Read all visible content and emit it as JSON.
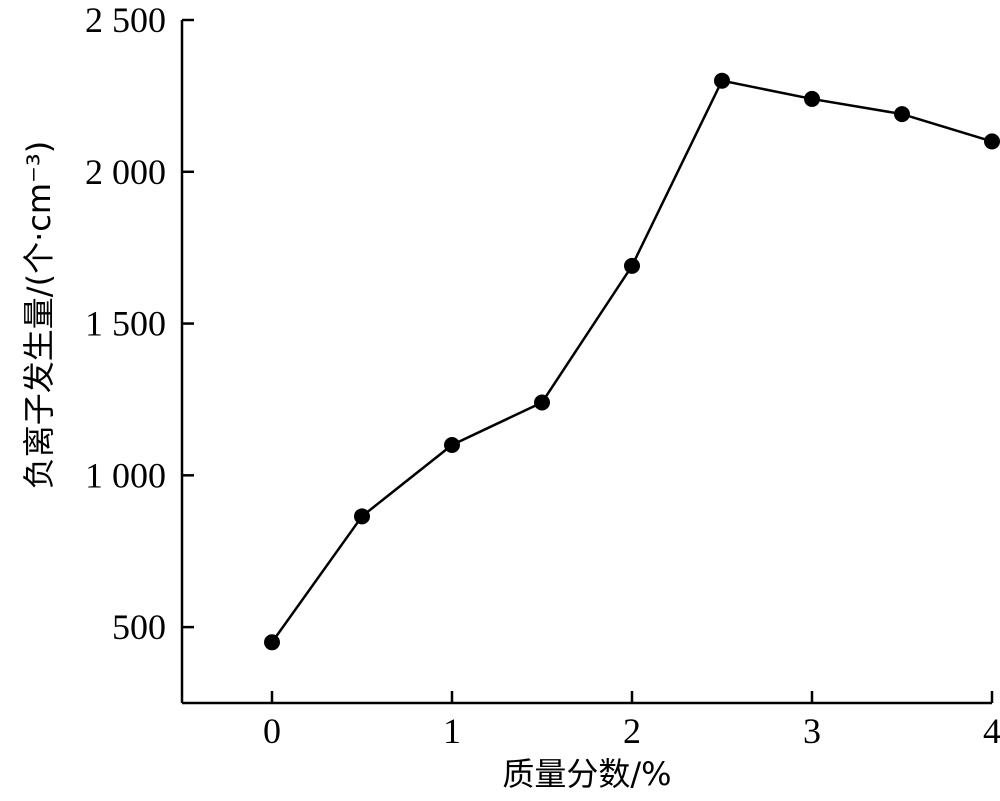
{
  "chart_data": {
    "type": "line",
    "xlabel": "质量分数/%",
    "ylabel": "负离子发生量/(个·cm⁻³)",
    "xlim": [
      -0.5,
      4
    ],
    "ylim": [
      250,
      2500
    ],
    "x_ticks": [
      0,
      1,
      2,
      3,
      4
    ],
    "x_tick_labels": [
      "0",
      "1",
      "2",
      "3",
      "4"
    ],
    "y_ticks": [
      500,
      1000,
      1500,
      2000,
      2500
    ],
    "y_tick_labels": [
      "500",
      "1 000",
      "1 500",
      "2 000",
      "2 500"
    ],
    "grid": false,
    "marker": "circle",
    "color": "#000000",
    "series": [
      {
        "x": [
          0,
          0.5,
          1.0,
          1.5,
          2.0,
          2.5,
          3.0,
          3.5,
          4.0
        ],
        "y": [
          450,
          865,
          1100,
          1240,
          1690,
          2300,
          2240,
          2190,
          2100
        ]
      }
    ]
  }
}
